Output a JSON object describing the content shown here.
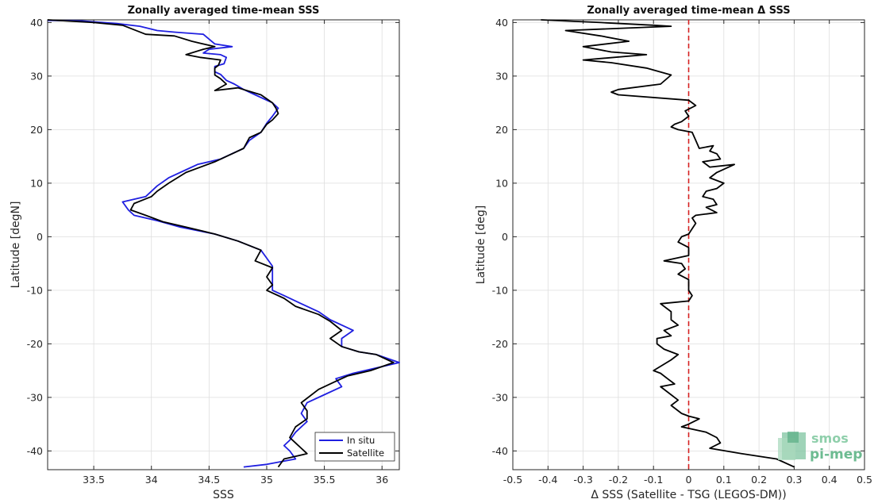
{
  "chart_data": [
    {
      "type": "line",
      "title": "Zonally averaged time-mean SSS",
      "xlabel": "SSS",
      "ylabel": "Latitude [degN]",
      "xlim": [
        33.1,
        36.15
      ],
      "ylim": [
        -43.5,
        40.5
      ],
      "xticks": [
        33.5,
        34,
        34.5,
        35,
        35.5,
        36
      ],
      "xtick_labels": [
        "33.5",
        "34",
        "34.5",
        "35",
        "35.5",
        "36"
      ],
      "yticks": [
        -40,
        -30,
        -20,
        -10,
        0,
        10,
        20,
        30,
        40
      ],
      "ytick_labels": [
        "-40",
        "-30",
        "-20",
        "-10",
        "0",
        "10",
        "20",
        "30",
        "40"
      ],
      "grid": true,
      "legend_position": "bottom-right",
      "series": [
        {
          "name": "In situ",
          "color": "#1f1fe0",
          "points": [
            [
              33.1,
              40.4
            ],
            [
              33.4,
              40.3
            ],
            [
              33.7,
              39.8
            ],
            [
              33.9,
              39.3
            ],
            [
              34.05,
              38.5
            ],
            [
              34.2,
              38.2
            ],
            [
              34.45,
              37.8
            ],
            [
              34.55,
              36.0
            ],
            [
              34.7,
              35.5
            ],
            [
              34.5,
              35.0
            ],
            [
              34.45,
              34.3
            ],
            [
              34.6,
              34.0
            ],
            [
              34.65,
              33.5
            ],
            [
              34.63,
              32.3
            ],
            [
              34.55,
              31.8
            ],
            [
              34.55,
              30.8
            ],
            [
              34.6,
              30.3
            ],
            [
              34.65,
              29.2
            ],
            [
              34.72,
              28.5
            ],
            [
              34.8,
              27.5
            ],
            [
              34.9,
              26.5
            ],
            [
              35.05,
              25.0
            ],
            [
              35.1,
              24.0
            ],
            [
              35.05,
              22.5
            ],
            [
              35.0,
              21.2
            ],
            [
              34.95,
              19.5
            ],
            [
              34.85,
              18.0
            ],
            [
              34.8,
              16.5
            ],
            [
              34.65,
              15.0
            ],
            [
              34.6,
              14.5
            ],
            [
              34.4,
              13.5
            ],
            [
              34.3,
              12.5
            ],
            [
              34.15,
              11.0
            ],
            [
              34.05,
              9.5
            ],
            [
              33.95,
              7.5
            ],
            [
              33.75,
              6.5
            ],
            [
              33.8,
              5.0
            ],
            [
              33.85,
              4.0
            ],
            [
              34.05,
              3.0
            ],
            [
              34.25,
              1.8
            ],
            [
              34.55,
              0.5
            ],
            [
              34.75,
              -0.8
            ],
            [
              34.95,
              -2.5
            ],
            [
              35.0,
              -4.0
            ],
            [
              35.05,
              -5.5
            ],
            [
              35.05,
              -7.0
            ],
            [
              35.05,
              -8.5
            ],
            [
              35.05,
              -10.0
            ],
            [
              35.15,
              -11.0
            ],
            [
              35.3,
              -12.5
            ],
            [
              35.45,
              -14.0
            ],
            [
              35.55,
              -15.5
            ],
            [
              35.7,
              -17.0
            ],
            [
              35.75,
              -17.5
            ],
            [
              35.65,
              -19.0
            ],
            [
              35.65,
              -20.5
            ],
            [
              35.8,
              -21.5
            ],
            [
              35.95,
              -22.0
            ],
            [
              36.15,
              -23.5
            ],
            [
              35.95,
              -24.5
            ],
            [
              35.75,
              -25.5
            ],
            [
              35.6,
              -26.5
            ],
            [
              35.65,
              -28.0
            ],
            [
              35.5,
              -29.5
            ],
            [
              35.35,
              -31.0
            ],
            [
              35.3,
              -33.0
            ],
            [
              35.35,
              -34.5
            ],
            [
              35.25,
              -36.5
            ],
            [
              35.2,
              -38.0
            ],
            [
              35.15,
              -39.0
            ],
            [
              35.2,
              -40.0
            ],
            [
              35.25,
              -41.5
            ],
            [
              35.0,
              -42.5
            ],
            [
              34.8,
              -43.0
            ]
          ]
        },
        {
          "name": "Satellite",
          "color": "#000000",
          "points": [
            [
              33.1,
              40.5
            ],
            [
              33.5,
              40.0
            ],
            [
              33.75,
              39.5
            ],
            [
              33.95,
              37.8
            ],
            [
              34.2,
              37.5
            ],
            [
              34.35,
              36.5
            ],
            [
              34.55,
              35.5
            ],
            [
              34.45,
              35.0
            ],
            [
              34.3,
              34.0
            ],
            [
              34.42,
              33.5
            ],
            [
              34.6,
              33.0
            ],
            [
              34.58,
              32.0
            ],
            [
              34.55,
              31.5
            ],
            [
              34.55,
              30.2
            ],
            [
              34.6,
              29.5
            ],
            [
              34.65,
              28.5
            ],
            [
              34.55,
              27.3
            ],
            [
              34.75,
              27.8
            ],
            [
              34.95,
              26.5
            ],
            [
              35.05,
              25.0
            ],
            [
              35.08,
              24.0
            ],
            [
              35.1,
              23.0
            ],
            [
              35.05,
              21.8
            ],
            [
              35.0,
              21.0
            ],
            [
              34.95,
              19.5
            ],
            [
              34.85,
              18.5
            ],
            [
              34.8,
              16.5
            ],
            [
              34.7,
              15.5
            ],
            [
              34.55,
              14.0
            ],
            [
              34.3,
              12.0
            ],
            [
              34.15,
              10.0
            ],
            [
              34.05,
              8.5
            ],
            [
              34.0,
              7.5
            ],
            [
              33.85,
              6.2
            ],
            [
              33.82,
              5.0
            ],
            [
              33.95,
              4.0
            ],
            [
              34.1,
              2.8
            ],
            [
              34.3,
              1.8
            ],
            [
              34.55,
              0.5
            ],
            [
              34.75,
              -0.8
            ],
            [
              34.95,
              -2.5
            ],
            [
              34.9,
              -4.5
            ],
            [
              35.05,
              -5.8
            ],
            [
              35.0,
              -7.5
            ],
            [
              35.05,
              -9.0
            ],
            [
              35.0,
              -10.0
            ],
            [
              35.15,
              -11.5
            ],
            [
              35.25,
              -13.0
            ],
            [
              35.45,
              -14.5
            ],
            [
              35.55,
              -15.8
            ],
            [
              35.65,
              -17.5
            ],
            [
              35.55,
              -19.0
            ],
            [
              35.65,
              -20.5
            ],
            [
              35.8,
              -21.5
            ],
            [
              35.95,
              -22.0
            ],
            [
              36.1,
              -23.5
            ],
            [
              35.9,
              -25.0
            ],
            [
              35.7,
              -26.0
            ],
            [
              35.6,
              -27.0
            ],
            [
              35.45,
              -28.5
            ],
            [
              35.3,
              -31.0
            ],
            [
              35.35,
              -32.5
            ],
            [
              35.35,
              -34.0
            ],
            [
              35.25,
              -35.5
            ],
            [
              35.2,
              -37.5
            ],
            [
              35.25,
              -38.5
            ],
            [
              35.35,
              -40.5
            ],
            [
              35.15,
              -41.5
            ],
            [
              35.1,
              -43.0
            ]
          ]
        }
      ]
    },
    {
      "type": "line",
      "title": "Zonally averaged time-mean Δ SSS",
      "xlabel": "Δ SSS (Satellite - TSG (LEGOS-DM))",
      "ylabel": "Latitude [deg]",
      "xlim": [
        -0.5,
        0.5
      ],
      "ylim": [
        -43.5,
        40.5
      ],
      "xticks": [
        -0.5,
        -0.4,
        -0.3,
        -0.2,
        -0.1,
        0,
        0.1,
        0.2,
        0.3,
        0.4,
        0.5
      ],
      "xtick_labels": [
        "-0.5",
        "-0.4",
        "-0.3",
        "-0.2",
        "-0.1",
        "0",
        "0.1",
        "0.2",
        "0.3",
        "0.4",
        "0.5"
      ],
      "yticks": [
        -40,
        -30,
        -20,
        -10,
        0,
        10,
        20,
        30,
        40
      ],
      "ytick_labels": [
        "-40",
        "-30",
        "-20",
        "-10",
        "0",
        "10",
        "20",
        "30",
        "40"
      ],
      "grid": true,
      "reference_line": {
        "x": 0,
        "style": "dashed",
        "color": "#d62020"
      },
      "series": [
        {
          "color": "#000000",
          "points": [
            [
              -0.42,
              40.5
            ],
            [
              -0.25,
              40.0
            ],
            [
              -0.1,
              39.5
            ],
            [
              -0.05,
              39.3
            ],
            [
              -0.35,
              38.5
            ],
            [
              -0.25,
              37.5
            ],
            [
              -0.17,
              36.5
            ],
            [
              -0.3,
              35.5
            ],
            [
              -0.22,
              34.5
            ],
            [
              -0.12,
              34.0
            ],
            [
              -0.3,
              33.0
            ],
            [
              -0.22,
              32.5
            ],
            [
              -0.12,
              31.5
            ],
            [
              -0.05,
              30.2
            ],
            [
              -0.08,
              28.5
            ],
            [
              -0.2,
              27.5
            ],
            [
              -0.22,
              27.0
            ],
            [
              -0.2,
              26.5
            ],
            [
              0.0,
              25.5
            ],
            [
              0.02,
              24.5
            ],
            [
              -0.01,
              23.5
            ],
            [
              0.0,
              22.5
            ],
            [
              -0.02,
              21.5
            ],
            [
              -0.04,
              21.0
            ],
            [
              -0.05,
              20.5
            ],
            [
              -0.03,
              20.0
            ],
            [
              0.01,
              19.5
            ],
            [
              0.02,
              18.0
            ],
            [
              0.03,
              16.5
            ],
            [
              0.07,
              17.0
            ],
            [
              0.06,
              16.0
            ],
            [
              0.08,
              15.5
            ],
            [
              0.09,
              14.5
            ],
            [
              0.04,
              14.0
            ],
            [
              0.06,
              13.0
            ],
            [
              0.13,
              13.5
            ],
            [
              0.08,
              12.0
            ],
            [
              0.06,
              11.0
            ],
            [
              0.1,
              10.0
            ],
            [
              0.08,
              9.0
            ],
            [
              0.05,
              8.5
            ],
            [
              0.04,
              7.5
            ],
            [
              0.07,
              7.0
            ],
            [
              0.08,
              6.0
            ],
            [
              0.05,
              5.5
            ],
            [
              0.08,
              4.5
            ],
            [
              0.02,
              4.0
            ],
            [
              0.01,
              3.5
            ],
            [
              0.02,
              2.5
            ],
            [
              0.01,
              1.5
            ],
            [
              0.0,
              0.5
            ],
            [
              -0.02,
              0.0
            ],
            [
              -0.03,
              -1.0
            ],
            [
              0.0,
              -2.0
            ],
            [
              0.0,
              -3.5
            ],
            [
              -0.07,
              -4.5
            ],
            [
              -0.02,
              -5.0
            ],
            [
              -0.01,
              -6.0
            ],
            [
              -0.03,
              -7.0
            ],
            [
              0.0,
              -8.0
            ],
            [
              0.0,
              -10.0
            ],
            [
              0.01,
              -11.0
            ],
            [
              0.0,
              -12.0
            ],
            [
              -0.08,
              -12.5
            ],
            [
              -0.05,
              -14.0
            ],
            [
              -0.05,
              -15.5
            ],
            [
              -0.03,
              -16.5
            ],
            [
              -0.07,
              -17.5
            ],
            [
              -0.05,
              -18.5
            ],
            [
              -0.09,
              -19.0
            ],
            [
              -0.09,
              -20.0
            ],
            [
              -0.07,
              -21.0
            ],
            [
              -0.03,
              -22.0
            ],
            [
              -0.05,
              -23.0
            ],
            [
              -0.1,
              -25.0
            ],
            [
              -0.08,
              -25.5
            ],
            [
              -0.06,
              -26.5
            ],
            [
              -0.04,
              -27.5
            ],
            [
              -0.08,
              -28.0
            ],
            [
              -0.06,
              -29.0
            ],
            [
              -0.03,
              -30.5
            ],
            [
              -0.05,
              -31.5
            ],
            [
              -0.02,
              -33.0
            ],
            [
              0.0,
              -33.5
            ],
            [
              0.03,
              -34.0
            ],
            [
              0.0,
              -35.0
            ],
            [
              -0.02,
              -35.5
            ],
            [
              0.05,
              -36.5
            ],
            [
              0.08,
              -37.5
            ],
            [
              0.09,
              -38.5
            ],
            [
              0.06,
              -39.5
            ],
            [
              0.15,
              -40.5
            ],
            [
              0.25,
              -41.5
            ],
            [
              0.3,
              -43.0
            ]
          ]
        }
      ]
    }
  ],
  "legend": {
    "items": [
      "In situ",
      "Satellite"
    ]
  },
  "logo": {
    "line1": "smos",
    "line2": "pi-mep"
  }
}
